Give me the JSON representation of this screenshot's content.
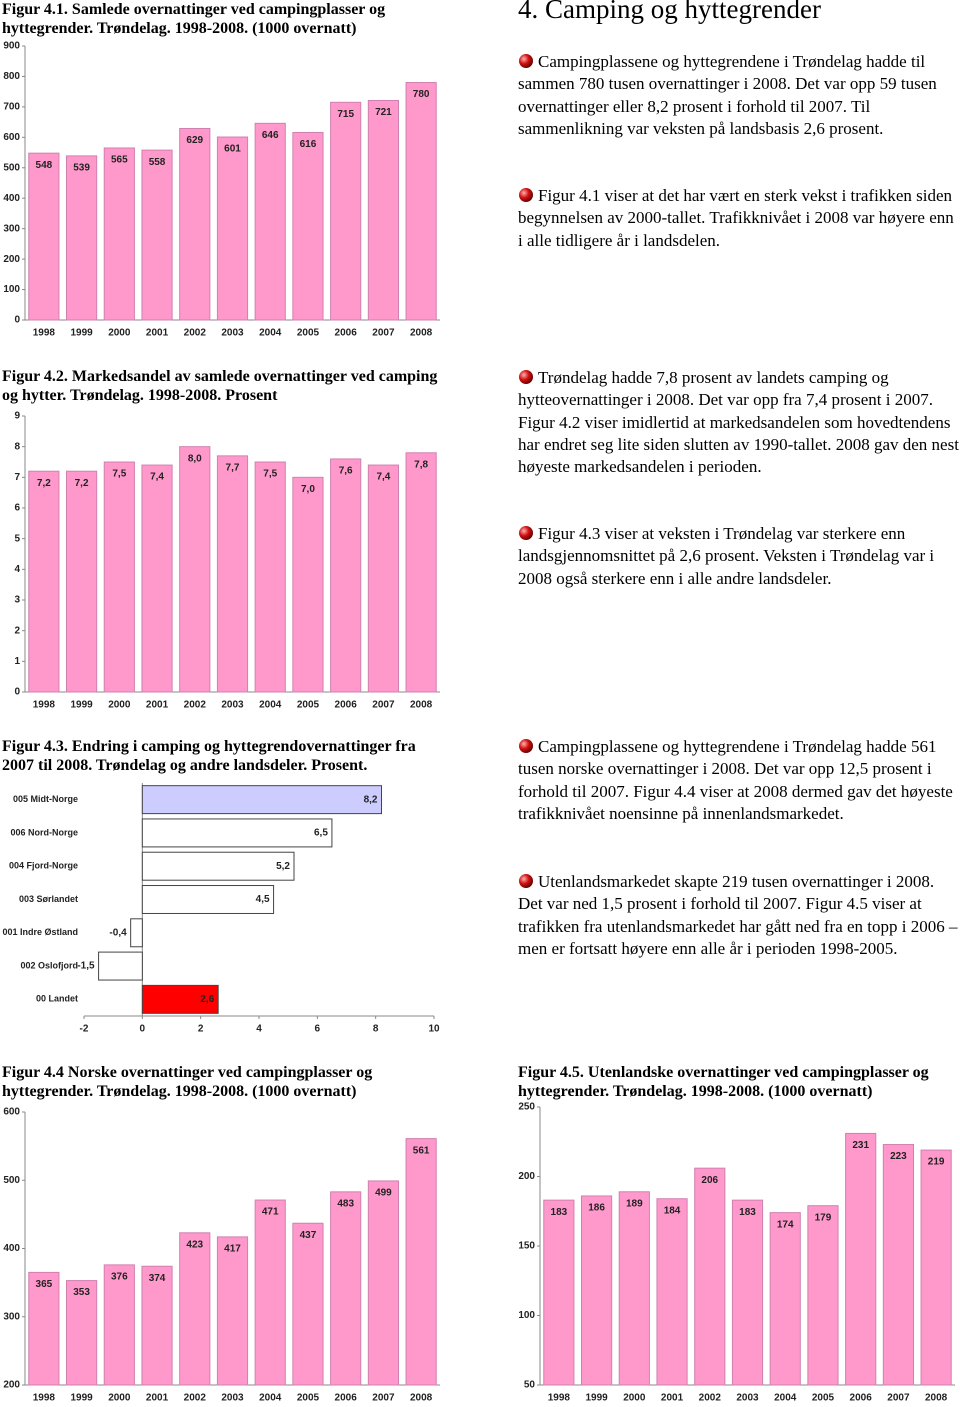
{
  "heading": "4. Camping og hyttegrender",
  "paragraphs": [
    "Campingplassene og hyttegrendene i Trøndelag hadde til sammen 780 tusen overnattinger i 2008. Det var opp 59 tusen overnattinger eller 8,2 prosent i forhold til 2007. Til sammenlikning var veksten på landsbasis 2,6 prosent.",
    "Figur 4.1 viser at det har vært en sterk vekst i trafikken siden begynnelsen av 2000-tallet. Trafikknivået i 2008 var høyere enn i alle tidligere år i landsdelen.",
    "Trøndelag hadde 7,8 prosent av landets camping og hytteovernattinger i 2008. Det var opp fra 7,4 prosent i 2007. Figur 4.2 viser imidlertid at markedsandelen som hovedtendens har endret seg lite siden slutten av 1990-tallet. 2008 gav den nest høyeste markedsandelen i perioden.",
    "Figur 4.3 viser at veksten i Trøndelag var sterkere enn landsgjennomsnittet på 2,6 prosent. Veksten i Trøndelag var i 2008 også sterkere enn i alle andre landsdeler.",
    "Campingplassene og hyttegrendene i Trøndelag hadde 561 tusen norske overnattinger i 2008. Det var opp 12,5 prosent i forhold til 2007. Figur 4.4 viser at 2008 dermed gav det høyeste trafikknivået noensinne på innenlandsmarkedet.",
    "Utenlandsmarkedet skapte 219 tusen overnattinger i 2008. Det var ned 1,5 prosent i forhold til 2007. Figur 4.5 viser at trafikken fra utenlandsmarkedet har gått ned fra en topp i 2006 – men er fortsatt høyere enn alle år i perioden 1998-2005."
  ],
  "chart_data": [
    {
      "type": "bar",
      "title": "Figur 4.1. Samlede overnattinger ved campingplasser og hyttegrender. Trøndelag. 1998-2008. (1000 overnatt)",
      "categories": [
        "1998",
        "1999",
        "2000",
        "2001",
        "2002",
        "2003",
        "2004",
        "2005",
        "2006",
        "2007",
        "2008"
      ],
      "values": [
        548,
        539,
        565,
        558,
        629,
        601,
        646,
        616,
        715,
        721,
        780
      ],
      "color": "#ff99cc",
      "ylim": [
        0,
        900
      ],
      "yticks": [
        0,
        100,
        200,
        300,
        400,
        500,
        600,
        700,
        800,
        900
      ]
    },
    {
      "type": "bar",
      "title": "Figur 4.2. Markedsandel av samlede overnattinger ved camping og hytter. Trøndelag. 1998-2008. Prosent",
      "categories": [
        "1998",
        "1999",
        "2000",
        "2001",
        "2002",
        "2003",
        "2004",
        "2005",
        "2006",
        "2007",
        "2008"
      ],
      "values": [
        7.2,
        7.2,
        7.5,
        7.4,
        8.0,
        7.7,
        7.5,
        7.0,
        7.6,
        7.4,
        7.8
      ],
      "value_labels": [
        "7,2",
        "7,2",
        "7,5",
        "7,4",
        "8,0",
        "7,7",
        "7,5",
        "7,0",
        "7,6",
        "7,4",
        "7,8"
      ],
      "color": "#ff99cc",
      "ylim": [
        0,
        9
      ],
      "yticks": [
        0,
        1,
        2,
        3,
        4,
        5,
        6,
        7,
        8,
        9
      ]
    },
    {
      "type": "barh",
      "title": "Figur 4.3. Endring i camping og hyttegrendovernattinger fra 2007 til 2008. Trøndelag og andre landsdeler. Prosent.",
      "categories": [
        "005 Midt-Norge",
        "006 Nord-Norge",
        "004 Fjord-Norge",
        "003 Sørlandet",
        "001 Indre Østland",
        "002 Oslofjord",
        "00 Landet"
      ],
      "values": [
        8.2,
        6.5,
        5.2,
        4.5,
        -0.4,
        -1.5,
        2.6
      ],
      "value_labels": [
        "8,2",
        "6,5",
        "5,2",
        "4,5",
        "-0,4",
        "-1,5",
        "2,6"
      ],
      "colors": [
        "#ccccff",
        "#ffffff",
        "#ffffff",
        "#ffffff",
        "#ffffff",
        "#ffffff",
        "#ff0000"
      ],
      "xlim": [
        -2,
        10
      ],
      "xticks": [
        -2,
        0,
        2,
        4,
        6,
        8,
        10
      ]
    },
    {
      "type": "bar",
      "title": "Figur 4.4 Norske overnattinger ved campingplasser og hyttegrender. Trøndelag. 1998-2008. (1000 overnatt)",
      "categories": [
        "1998",
        "1999",
        "2000",
        "2001",
        "2002",
        "2003",
        "2004",
        "2005",
        "2006",
        "2007",
        "2008"
      ],
      "values": [
        365,
        353,
        376,
        374,
        423,
        417,
        471,
        437,
        483,
        499,
        561
      ],
      "color": "#ff99cc",
      "ylim": [
        200,
        600
      ],
      "yticks": [
        200,
        300,
        400,
        500,
        600
      ]
    },
    {
      "type": "bar",
      "title": "Figur 4.5. Utenlandske overnattinger ved campingplasser og hyttegrender. Trøndelag. 1998-2008. (1000 overnatt)",
      "categories": [
        "1998",
        "1999",
        "2000",
        "2001",
        "2002",
        "2003",
        "2004",
        "2005",
        "2006",
        "2007",
        "2008"
      ],
      "values": [
        183,
        186,
        189,
        184,
        206,
        183,
        174,
        179,
        231,
        223,
        219
      ],
      "color": "#ff99cc",
      "ylim": [
        50,
        250
      ],
      "yticks": [
        50,
        100,
        150,
        200,
        250
      ]
    }
  ]
}
